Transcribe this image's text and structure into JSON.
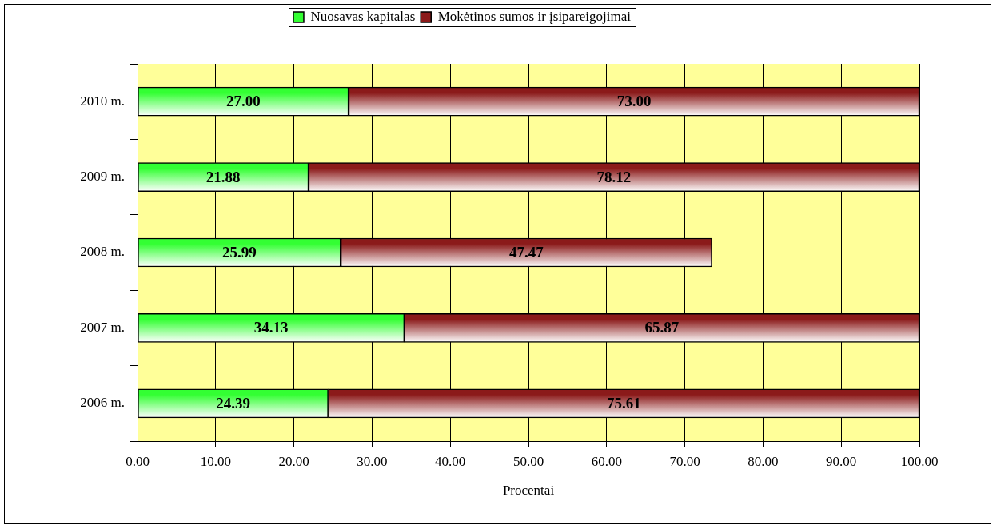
{
  "chart_data": {
    "type": "bar",
    "orientation": "horizontal",
    "stacked": true,
    "categories": [
      "2010 m.",
      "2009 m.",
      "2008 m.",
      "2007 m.",
      "2006 m."
    ],
    "series": [
      {
        "name": "Nuosavas kapitalas",
        "color": "#33ff33",
        "values": [
          27,
          21.88,
          25.99,
          34.13,
          24.39
        ],
        "value_labels": [
          "27.00",
          "21.88",
          "25.99",
          "34.13",
          "24.39"
        ]
      },
      {
        "name": "Mokėtinos sumos ir įsipareigojimai",
        "color": "#8b1a1a",
        "values": [
          73,
          78.12,
          47.47,
          65.87,
          75.61
        ],
        "value_labels": [
          "73.00",
          "78.12",
          "47.47",
          "65.87",
          "75.61"
        ]
      }
    ],
    "xlabel": "Procentai",
    "xlim": [
      0,
      100
    ],
    "xticks": [
      {
        "value": 0,
        "label": "0.00"
      },
      {
        "value": 10,
        "label": "10.00"
      },
      {
        "value": 20,
        "label": "20.00"
      },
      {
        "value": 30,
        "label": "30.00"
      },
      {
        "value": 40,
        "label": "40.00"
      },
      {
        "value": 50,
        "label": "50.00"
      },
      {
        "value": 60,
        "label": "60.00"
      },
      {
        "value": 70,
        "label": "70.00"
      },
      {
        "value": 80,
        "label": "80.00"
      },
      {
        "value": 90,
        "label": "90.00"
      },
      {
        "value": 100,
        "label": "100.00"
      }
    ],
    "grid": "x",
    "legend": "top"
  }
}
